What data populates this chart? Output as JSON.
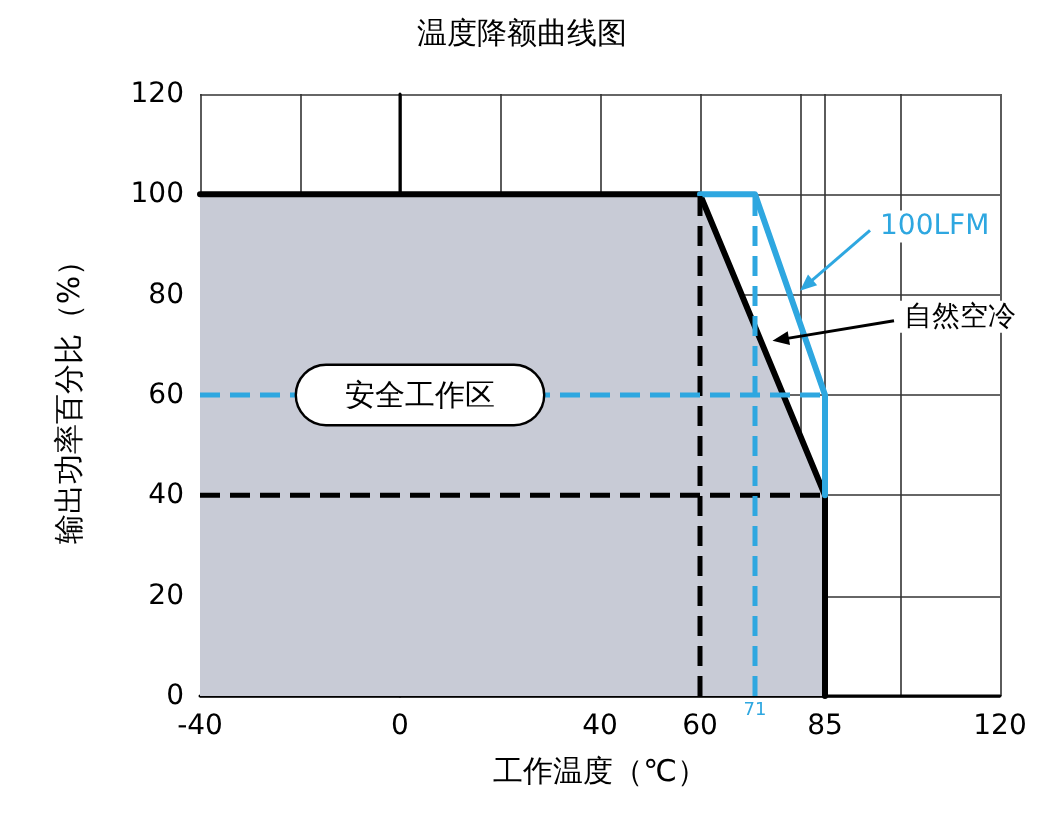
{
  "chart_data": {
    "type": "line",
    "title": "温度降额曲线图",
    "xlabel": "工作温度（℃）",
    "ylabel": "输出功率百分比（%）",
    "xlim": [
      -40,
      120
    ],
    "xticks": [
      -40,
      {
        "value": -20,
        "label": null
      },
      0,
      {
        "value": 20,
        "label": null
      },
      40,
      60,
      {
        "value": 80,
        "label": null
      },
      85,
      {
        "value": 100,
        "label": null
      },
      120
    ],
    "ylim": [
      0,
      120
    ],
    "yticks": [
      0,
      20,
      40,
      60,
      80,
      100,
      120
    ],
    "grid": true,
    "marker": "none",
    "line_style": "solid",
    "series": [
      {
        "name": "自然空冷",
        "type": "area",
        "color": "#000000",
        "x": [
          -40,
          60,
          85,
          85
        ],
        "values": [
          100,
          100,
          40,
          0
        ]
      },
      {
        "name": "100LFM",
        "type": "line",
        "color": "#2ea7e0",
        "x": [
          60,
          71,
          85,
          85
        ],
        "values": [
          100,
          100,
          60,
          40
        ]
      },
      {
        "color": "#000000",
        "line_style": "dashed",
        "x": [
          -40,
          85
        ],
        "values": [
          40,
          40
        ]
      },
      {
        "color": "#000000",
        "line_style": "dashed",
        "x": [
          60,
          60
        ],
        "values": [
          0,
          100
        ]
      },
      {
        "color": "#2ea7e0",
        "line_style": "dashed",
        "x": [
          -40,
          85
        ],
        "values": [
          60,
          60
        ]
      },
      {
        "color": "#2ea7e0",
        "line_style": "dashed",
        "x": [
          71,
          71
        ],
        "values": [
          0,
          100
        ]
      }
    ],
    "annotations": [
      "安全工作区",
      {
        "text": "71",
        "x": 71,
        "y": 0
      }
    ]
  }
}
